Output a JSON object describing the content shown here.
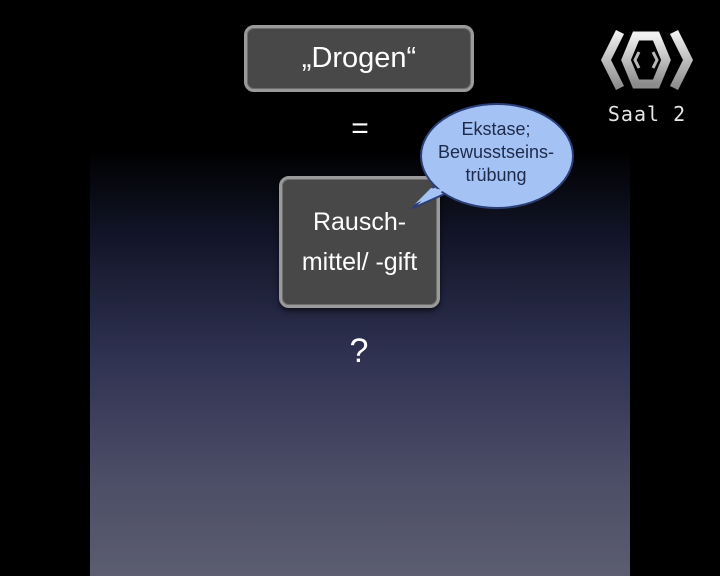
{
  "slide": {
    "title_box": "„Drogen“",
    "equals_sign": "=",
    "concept_box": {
      "line1": "Rausch-",
      "line2": "mittel/ -gift"
    },
    "question_mark": "?",
    "speech_bubble": {
      "line1": "Ekstase;",
      "line2": "Bewusstseins-",
      "line3": "trübung"
    }
  },
  "channel_logo": {
    "label": "Saal 2",
    "icon": "hexagon-logo-icon"
  },
  "colors": {
    "background": "#000000",
    "box_fill": "#484848",
    "box_border": "#9a9a9a",
    "bubble_fill": "#a4c2f4",
    "bubble_stroke": "#2a3e78",
    "bubble_text": "#1e2a4a",
    "slide_gradient_bottom": "#5c5d70"
  }
}
